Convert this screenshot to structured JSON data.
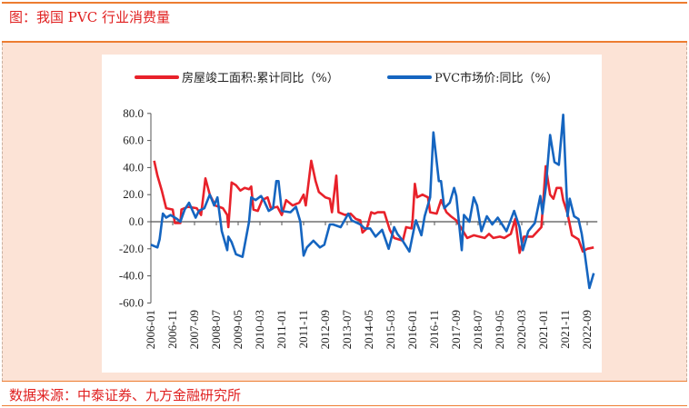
{
  "header": {
    "title": "图：我国 PVC 行业消费量"
  },
  "footer": {
    "source": "数据来源：中泰证券、九方金融研究所"
  },
  "chart_data": {
    "type": "line",
    "title": "",
    "x_unit": "months since 2006-01",
    "xlabel": "",
    "ylabel": "",
    "ylim": [
      -60,
      80
    ],
    "yticks": [
      "80.0",
      "60.0",
      "40.0",
      "20.0",
      "0.0",
      "-20.0",
      "-40.0",
      "-60.0"
    ],
    "ytick_values": [
      80,
      60,
      40,
      20,
      0,
      -20,
      -40,
      -60
    ],
    "xticks": [
      "2006-01",
      "2006-11",
      "2007-09",
      "2008-07",
      "2009-05",
      "2010-03",
      "2011-01",
      "2011-11",
      "2012-09",
      "2013-07",
      "2014-05",
      "2015-03",
      "2016-01",
      "2016-11",
      "2017-09",
      "2018-07",
      "2019-05",
      "2020-03",
      "2021-01",
      "2021-11",
      "2022-09"
    ],
    "legend_position": "top",
    "series": [
      {
        "name": "房屋竣工面积:累计同比（%）",
        "color": "#e8212a",
        "points": [
          [
            1.5,
            45
          ],
          [
            3,
            34
          ],
          [
            5,
            23
          ],
          [
            7,
            10
          ],
          [
            10,
            9
          ],
          [
            11,
            -1
          ],
          [
            13.5,
            -1
          ],
          [
            14,
            9
          ],
          [
            17,
            11
          ],
          [
            21,
            10
          ],
          [
            23,
            5
          ],
          [
            25,
            32
          ],
          [
            27,
            20
          ],
          [
            29.5,
            12
          ],
          [
            33,
            10
          ],
          [
            35,
            5
          ],
          [
            35.5,
            -4
          ],
          [
            37,
            29
          ],
          [
            39,
            27
          ],
          [
            41,
            23
          ],
          [
            43,
            25
          ],
          [
            45,
            24
          ],
          [
            46,
            26
          ],
          [
            47,
            9
          ],
          [
            49,
            8
          ],
          [
            51,
            16
          ],
          [
            53.5,
            18
          ],
          [
            55,
            10
          ],
          [
            58,
            11
          ],
          [
            60,
            5
          ],
          [
            62,
            16
          ],
          [
            65,
            12
          ],
          [
            68,
            14
          ],
          [
            70,
            20
          ],
          [
            71,
            12
          ],
          [
            73.5,
            45
          ],
          [
            75.5,
            30
          ],
          [
            77,
            22
          ],
          [
            80,
            18
          ],
          [
            82,
            17
          ],
          [
            83,
            7
          ],
          [
            85,
            34
          ],
          [
            86,
            7
          ],
          [
            89,
            5
          ],
          [
            91.5,
            6
          ],
          [
            94,
            2
          ],
          [
            96,
            1
          ],
          [
            97,
            -8
          ],
          [
            99,
            -5
          ],
          [
            101,
            7
          ],
          [
            102.5,
            6
          ],
          [
            104,
            7
          ],
          [
            107,
            7
          ],
          [
            109.5,
            -6
          ],
          [
            111.5,
            -12
          ],
          [
            115.5,
            -14
          ],
          [
            117,
            -4
          ],
          [
            119.5,
            -5
          ],
          [
            120,
            2
          ],
          [
            121,
            28
          ],
          [
            122,
            18
          ],
          [
            124.5,
            20
          ],
          [
            127,
            18
          ],
          [
            128,
            7
          ],
          [
            131,
            6
          ],
          [
            133,
            16
          ],
          [
            135.5,
            7
          ],
          [
            137.5,
            4
          ],
          [
            140,
            1
          ],
          [
            142,
            -4
          ],
          [
            145,
            -12
          ],
          [
            148,
            -10
          ],
          [
            153,
            -12
          ],
          [
            155,
            -9
          ],
          [
            157,
            -12
          ],
          [
            160,
            -11
          ],
          [
            162,
            -12
          ],
          [
            165,
            -9
          ],
          [
            167,
            2
          ],
          [
            169,
            -23
          ],
          [
            171,
            -11
          ],
          [
            175,
            -11
          ],
          [
            179,
            -4
          ],
          [
            181,
            41
          ],
          [
            183,
            20
          ],
          [
            184.5,
            17
          ],
          [
            186,
            25
          ],
          [
            188,
            25
          ],
          [
            189,
            16
          ],
          [
            191,
            6
          ],
          [
            193,
            -10
          ],
          [
            196,
            -13
          ],
          [
            198,
            -22
          ],
          [
            200,
            -20
          ],
          [
            203,
            -19
          ]
        ]
      },
      {
        "name": "PVC市场价:同比（%）",
        "color": "#1565c0",
        "points": [
          [
            0,
            -17
          ],
          [
            3,
            -19
          ],
          [
            4,
            -13
          ],
          [
            5.5,
            6
          ],
          [
            7,
            3
          ],
          [
            9,
            5
          ],
          [
            12,
            2
          ],
          [
            13.5,
            0
          ],
          [
            15.5,
            9
          ],
          [
            17.5,
            14
          ],
          [
            20.5,
            3
          ],
          [
            22,
            8
          ],
          [
            24.5,
            10
          ],
          [
            27,
            20
          ],
          [
            29,
            12
          ],
          [
            30.5,
            18
          ],
          [
            32.5,
            -7
          ],
          [
            35,
            -21
          ],
          [
            35.5,
            -11
          ],
          [
            37,
            -15
          ],
          [
            39,
            -24
          ],
          [
            42,
            -26
          ],
          [
            45,
            0
          ],
          [
            46,
            18
          ],
          [
            48,
            16
          ],
          [
            50.5,
            19
          ],
          [
            52,
            15
          ],
          [
            54,
            8
          ],
          [
            56,
            10
          ],
          [
            57.5,
            30
          ],
          [
            58.5,
            30
          ],
          [
            60,
            8
          ],
          [
            64,
            7
          ],
          [
            66.5,
            11
          ],
          [
            68.5,
            0
          ],
          [
            70,
            -25
          ],
          [
            71.5,
            -19
          ],
          [
            74.5,
            -14
          ],
          [
            77.5,
            -19
          ],
          [
            79.5,
            -17
          ],
          [
            82,
            -2
          ],
          [
            83.5,
            -2
          ],
          [
            87,
            -4
          ],
          [
            90.5,
            6
          ],
          [
            92,
            1
          ],
          [
            96,
            -2
          ],
          [
            98,
            -5
          ],
          [
            100.5,
            -5
          ],
          [
            103,
            -11
          ],
          [
            106,
            -6
          ],
          [
            109,
            -20
          ],
          [
            111.5,
            -4
          ],
          [
            113,
            -9
          ],
          [
            115,
            -13
          ],
          [
            118.5,
            -22
          ],
          [
            121,
            -2
          ],
          [
            121.5,
            1
          ],
          [
            124,
            -10
          ],
          [
            125.5,
            4
          ],
          [
            128,
            18
          ],
          [
            129.5,
            66
          ],
          [
            132,
            30
          ],
          [
            133,
            30
          ],
          [
            134.5,
            10
          ],
          [
            137,
            14
          ],
          [
            139,
            25
          ],
          [
            140,
            19
          ],
          [
            142.5,
            -21
          ],
          [
            143.5,
            5
          ],
          [
            146,
            0
          ],
          [
            148,
            18
          ],
          [
            149.5,
            12
          ],
          [
            151.5,
            -7
          ],
          [
            154,
            4
          ],
          [
            156.5,
            -2
          ],
          [
            159,
            3
          ],
          [
            161,
            -2
          ],
          [
            163,
            -7
          ],
          [
            166.5,
            8
          ],
          [
            169,
            -4
          ],
          [
            170.5,
            -21
          ],
          [
            173,
            -7
          ],
          [
            176,
            -1
          ],
          [
            178.5,
            19
          ],
          [
            179.5,
            6
          ],
          [
            181,
            25
          ],
          [
            183,
            64
          ],
          [
            185,
            44
          ],
          [
            187,
            42
          ],
          [
            189,
            79
          ],
          [
            191,
            4
          ],
          [
            192,
            17
          ],
          [
            194,
            4
          ],
          [
            196,
            2
          ],
          [
            197.5,
            -9
          ],
          [
            199,
            -25
          ],
          [
            201,
            -49
          ],
          [
            203,
            -38
          ]
        ]
      }
    ]
  }
}
